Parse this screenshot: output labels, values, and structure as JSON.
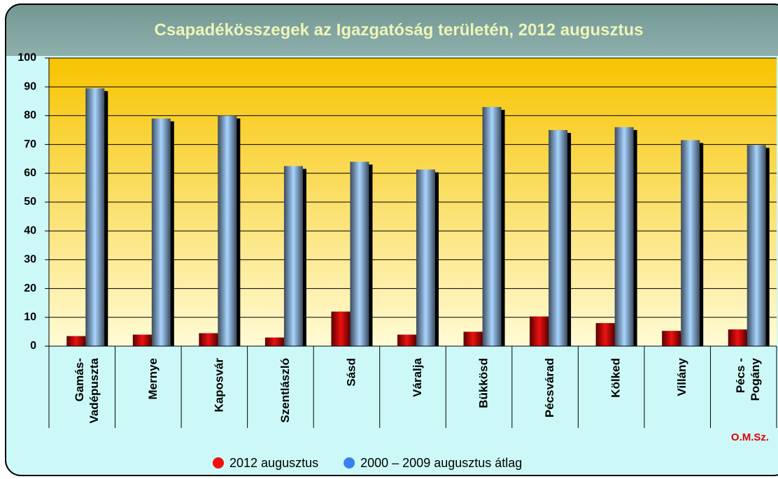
{
  "chart_data": {
    "type": "bar",
    "title": "Csapadékösszegek az Igazgatóság területén, 2012 augusztus",
    "categories": [
      "Gamás-\nVadépuszta",
      "Mernye",
      "Kaposvár",
      "Szentlászló",
      "Sásd",
      "Váralja",
      "Bükkösd",
      "Pécsvárad",
      "Kölked",
      "Villány",
      "Pécs -\nPogány"
    ],
    "series": [
      {
        "name": "2012 augusztus",
        "color": "#ee1111",
        "values": [
          3.5,
          4,
          4.5,
          3,
          12,
          4,
          5,
          10.3,
          8,
          5.3,
          5.8
        ]
      },
      {
        "name": "2000 – 2009 augusztus átlag",
        "color": "#3c7ef0",
        "values": [
          89.5,
          79,
          80,
          62.5,
          64,
          61.3,
          83,
          75,
          76,
          71.5,
          69.8
        ]
      }
    ],
    "ylim": [
      0,
      100
    ],
    "yticks": [
      0,
      10,
      20,
      30,
      40,
      50,
      60,
      70,
      80,
      90,
      100
    ],
    "grid": true,
    "annotation": "O.M.Sz."
  }
}
